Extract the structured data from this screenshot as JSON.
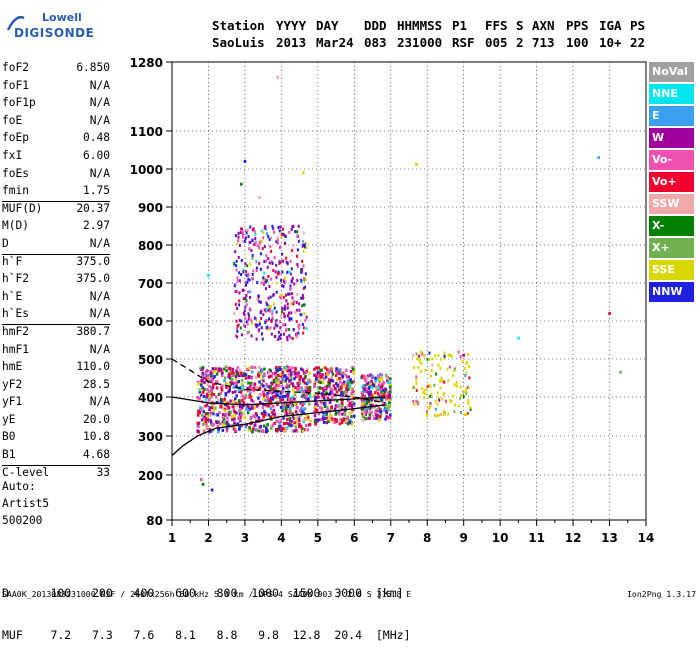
{
  "logo": {
    "line1": "Lowell",
    "line2": "DIGISONDE"
  },
  "header": {
    "row1": [
      "Station",
      "YYYY",
      "DAY",
      "DDD",
      "HHMMSS",
      "P1",
      "FFS",
      "S",
      "AXN",
      "PPS",
      "IGA",
      "PS"
    ],
    "row2": [
      "SaoLuis",
      "2013",
      "Mar24",
      "083",
      "231000",
      "RSF",
      "005",
      "2",
      "713",
      "100",
      "10+",
      "22"
    ]
  },
  "params": [
    {
      "label": "foF2",
      "value": "6.850"
    },
    {
      "label": "foF1",
      "value": "N/A"
    },
    {
      "label": "foF1p",
      "value": "N/A"
    },
    {
      "label": "foE",
      "value": "N/A"
    },
    {
      "label": "foEp",
      "value": "0.48"
    },
    {
      "label": "fxI",
      "value": "6.00"
    },
    {
      "label": "foEs",
      "value": "N/A"
    },
    {
      "label": "fmin",
      "value": "1.75"
    },
    {
      "label": "MUF(D)",
      "value": "20.37",
      "sep": true
    },
    {
      "label": "M(D)",
      "value": "2.97"
    },
    {
      "label": "D",
      "value": "N/A"
    },
    {
      "label": "h`F",
      "value": "375.0",
      "sep": true
    },
    {
      "label": "h`F2",
      "value": "375.0"
    },
    {
      "label": "h`E",
      "value": "N/A"
    },
    {
      "label": "h`Es",
      "value": "N/A"
    },
    {
      "label": "hmF2",
      "value": "380.7",
      "sep": true
    },
    {
      "label": "hmF1",
      "value": "N/A"
    },
    {
      "label": "hmE",
      "value": "110.0"
    },
    {
      "label": "yF2",
      "value": "28.5"
    },
    {
      "label": "yF1",
      "value": "N/A"
    },
    {
      "label": "yE",
      "value": "20.0"
    },
    {
      "label": "B0",
      "value": "10.8"
    },
    {
      "label": "B1",
      "value": "4.68"
    },
    {
      "label": "C-level",
      "value": "33",
      "sep": true
    }
  ],
  "auto": {
    "line1": "Auto:",
    "line2": "Artist5",
    "line3": "500200"
  },
  "legend": [
    {
      "label": "NoVal",
      "color": "#a0a0a0"
    },
    {
      "label": "NNE",
      "color": "#00e5ee"
    },
    {
      "label": "E",
      "color": "#3aa0f0"
    },
    {
      "label": "W",
      "color": "#a000a0"
    },
    {
      "label": "Vo-",
      "color": "#f050b0"
    },
    {
      "label": "Vo+",
      "color": "#f00030"
    },
    {
      "label": "SSW",
      "color": "#f0a8a8"
    },
    {
      "label": "X-",
      "color": "#008000"
    },
    {
      "label": "X+",
      "color": "#70b050"
    },
    {
      "label": "SSE",
      "color": "#d8d800"
    },
    {
      "label": "NNW",
      "color": "#2020e0"
    }
  ],
  "footer": {
    "d_row": "D      100   200   400   600   800  1000  1500  3000  [km]",
    "muf_row": "MUF    7.2   7.3   7.6   8.1   8.8   9.8  12.8  20.4  [MHz]",
    "file_line": "SAA0K_2013083231000.RSF / 260fx256h 50 kHz 5.0 km / DPS-4 SAA0K 903 / 2.6 S 315.8 E",
    "version": "Ion2Png 1.3.17"
  },
  "chart_data": {
    "type": "scatter",
    "title": "",
    "xlabel": "",
    "ylabel": "",
    "xlim": [
      1,
      14
    ],
    "ylim": [
      80,
      1280
    ],
    "x_ticks": [
      1,
      2,
      3,
      4,
      5,
      6,
      7,
      8,
      9,
      10,
      11,
      12,
      13,
      14
    ],
    "y_ticks": [
      80,
      200,
      300,
      400,
      500,
      600,
      700,
      800,
      900,
      1000,
      1100,
      1280
    ],
    "grid": true,
    "legend_position": "right",
    "point_clusters": [
      {
        "name": "F-layer trace low-frequency",
        "x_range": [
          1.7,
          4.8
        ],
        "y_range": [
          310,
          480
        ]
      },
      {
        "name": "F-layer multiple echoes",
        "x_range": [
          2.7,
          4.7
        ],
        "y_range": [
          550,
          850
        ]
      },
      {
        "name": "F-layer cluster mid",
        "x_range": [
          4.9,
          6.0
        ],
        "y_range": [
          330,
          480
        ]
      },
      {
        "name": "F-layer cluster high",
        "x_range": [
          6.2,
          7.0
        ],
        "y_range": [
          340,
          460
        ]
      },
      {
        "name": "SSE spread",
        "x_range": [
          7.6,
          9.2
        ],
        "y_range": [
          350,
          520
        ]
      }
    ],
    "profile_curves": [
      {
        "name": "virtual height (dashed)",
        "x": [
          1.0,
          2.0,
          3.0,
          4.0,
          5.0,
          6.0,
          6.85
        ],
        "y": [
          500,
          440,
          420,
          415,
          410,
          400,
          385
        ]
      },
      {
        "name": "true height profile (solid)",
        "x": [
          1.0,
          1.3,
          1.7,
          2.2,
          3.0,
          4.0,
          5.0,
          6.0,
          6.85
        ],
        "y": [
          250,
          275,
          300,
          320,
          330,
          350,
          360,
          370,
          380
        ]
      },
      {
        "name": "lower trace (solid)",
        "x": [
          1.0,
          2.0,
          3.0,
          4.0,
          5.0,
          6.0,
          6.85
        ],
        "y": [
          400,
          385,
          380,
          385,
          390,
          395,
          400
        ]
      }
    ]
  }
}
